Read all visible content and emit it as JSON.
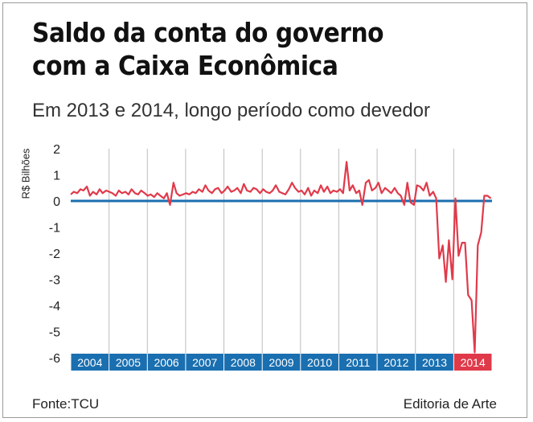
{
  "title_lines": [
    "Saldo da conta do governo",
    "com a Caixa Econômica"
  ],
  "subtitle": "Em 2013 e 2014, longo período como devedor",
  "source": "Fonte:TCU",
  "credit": "Editoria de Arte",
  "colors": {
    "line": "#e03a4a",
    "zero_line": "#1a6fb0",
    "year_band": "#1a6fb0",
    "year_band_highlight": "#e03a4a",
    "grid": "#bdbdbd"
  },
  "chart_data": {
    "type": "line",
    "title": "Saldo da conta do governo com a Caixa Econômica",
    "subtitle": "Em 2013 e 2014, longo período como devedor",
    "ylabel": "R$ Bilhões",
    "xlabel": "",
    "ylim": [
      -6,
      2
    ],
    "yticks": [
      2,
      1,
      0,
      -1,
      -2,
      -3,
      -4,
      -5,
      -6
    ],
    "ytick_labels": [
      "2",
      "1",
      "0",
      "-1",
      "-2",
      "-3",
      "-4",
      "-5",
      "-6"
    ],
    "grid": "vertical lines between years",
    "x_categories": [
      "2004",
      "2005",
      "2006",
      "2007",
      "2008",
      "2009",
      "2010",
      "2011",
      "2012",
      "2013",
      "2014"
    ],
    "highlight_category": "2014",
    "x_range": [
      2004.0,
      2014.95
    ],
    "series": [
      {
        "x": [
          2004.0,
          2004.08,
          2004.17,
          2004.25,
          2004.33,
          2004.42,
          2004.5,
          2004.58,
          2004.67,
          2004.75,
          2004.83,
          2004.92,
          2005.0,
          2005.08,
          2005.17,
          2005.25,
          2005.33,
          2005.42,
          2005.5,
          2005.58,
          2005.67,
          2005.75,
          2005.83,
          2005.92,
          2006.0,
          2006.08,
          2006.17,
          2006.25,
          2006.33,
          2006.42,
          2006.5,
          2006.58,
          2006.67,
          2006.75,
          2006.83,
          2006.92,
          2007.0,
          2007.08,
          2007.17,
          2007.25,
          2007.33,
          2007.42,
          2007.5,
          2007.58,
          2007.67,
          2007.75,
          2007.83,
          2007.92,
          2008.0,
          2008.08,
          2008.17,
          2008.25,
          2008.33,
          2008.42,
          2008.5,
          2008.58,
          2008.67,
          2008.75,
          2008.83,
          2008.92,
          2009.0,
          2009.08,
          2009.17,
          2009.25,
          2009.33,
          2009.42,
          2009.5,
          2009.58,
          2009.67,
          2009.75,
          2009.83,
          2009.92,
          2010.0,
          2010.08,
          2010.17,
          2010.25,
          2010.33,
          2010.42,
          2010.5,
          2010.58,
          2010.67,
          2010.75,
          2010.83,
          2010.92,
          2011.0,
          2011.08,
          2011.17,
          2011.25,
          2011.33,
          2011.42,
          2011.5,
          2011.58,
          2011.67,
          2011.75,
          2011.83,
          2011.92,
          2012.0,
          2012.08,
          2012.17,
          2012.25,
          2012.33,
          2012.42,
          2012.5,
          2012.58,
          2012.67,
          2012.75,
          2012.83,
          2012.92,
          2013.0,
          2013.08,
          2013.17,
          2013.25,
          2013.33,
          2013.42,
          2013.5,
          2013.58,
          2013.67,
          2013.75,
          2013.83,
          2013.92,
          2014.0,
          2014.08,
          2014.17,
          2014.25,
          2014.33,
          2014.42,
          2014.5,
          2014.58,
          2014.67,
          2014.75,
          2014.83,
          2014.92
        ],
        "y": [
          0.25,
          0.35,
          0.3,
          0.45,
          0.4,
          0.55,
          0.2,
          0.35,
          0.25,
          0.45,
          0.3,
          0.4,
          0.35,
          0.3,
          0.2,
          0.4,
          0.3,
          0.35,
          0.25,
          0.45,
          0.3,
          0.25,
          0.4,
          0.3,
          0.2,
          0.25,
          0.15,
          0.3,
          0.2,
          0.1,
          0.3,
          -0.15,
          0.7,
          0.3,
          0.2,
          0.25,
          0.3,
          0.25,
          0.35,
          0.3,
          0.45,
          0.35,
          0.6,
          0.4,
          0.3,
          0.45,
          0.5,
          0.3,
          0.4,
          0.55,
          0.35,
          0.4,
          0.5,
          0.3,
          0.65,
          0.4,
          0.35,
          0.5,
          0.45,
          0.3,
          0.45,
          0.35,
          0.3,
          0.4,
          0.6,
          0.35,
          0.3,
          0.25,
          0.45,
          0.7,
          0.5,
          0.35,
          0.4,
          0.25,
          0.5,
          0.2,
          0.4,
          0.3,
          0.6,
          0.35,
          0.55,
          0.3,
          0.4,
          0.35,
          0.45,
          0.3,
          1.5,
          0.4,
          0.6,
          0.3,
          0.4,
          -0.15,
          0.7,
          0.8,
          0.4,
          0.5,
          0.7,
          0.3,
          0.5,
          0.4,
          0.3,
          0.5,
          0.3,
          0.2,
          -0.15,
          0.7,
          -0.05,
          -0.15,
          0.6,
          0.55,
          0.4,
          0.7,
          0.2,
          0.35,
          0.1,
          -2.2,
          -1.7,
          -3.1,
          -1.5,
          -3.0,
          0.1,
          -2.1,
          -1.6,
          -1.6,
          -3.6,
          -3.8,
          -5.8,
          -1.7,
          -1.2,
          0.2,
          0.2,
          0.1
        ]
      }
    ]
  }
}
